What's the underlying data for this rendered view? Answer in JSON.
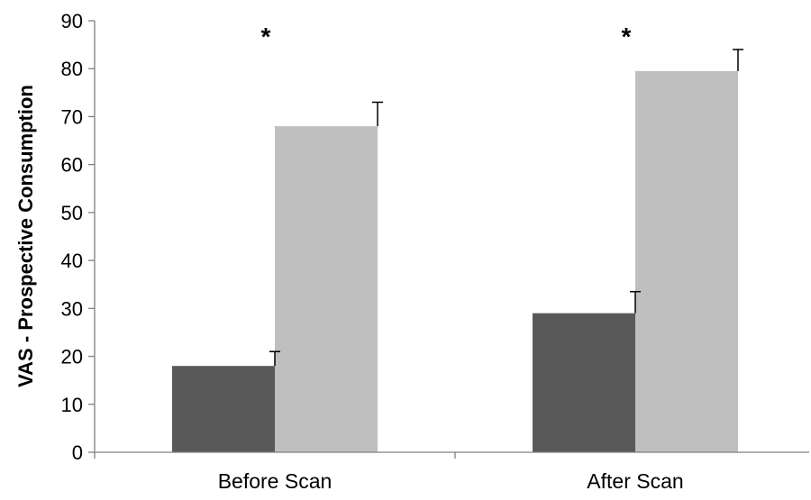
{
  "chart_data": {
    "type": "bar",
    "ylabel": "VAS - Prospective Consumption",
    "xlabel": "",
    "ylim": [
      0,
      90
    ],
    "yticks": [
      0,
      10,
      20,
      30,
      40,
      50,
      60,
      70,
      80,
      90
    ],
    "grid": false,
    "legend": "none",
    "categories": [
      "Before Scan",
      "After Scan"
    ],
    "series": [
      {
        "color": "#595959",
        "values": [
          18,
          29
        ],
        "error_plus": [
          3,
          4.5
        ]
      },
      {
        "color": "#bfbfbf",
        "values": [
          68,
          79.5
        ],
        "error_plus": [
          5,
          4.5
        ]
      }
    ],
    "annotations": [
      "*",
      "*"
    ]
  }
}
